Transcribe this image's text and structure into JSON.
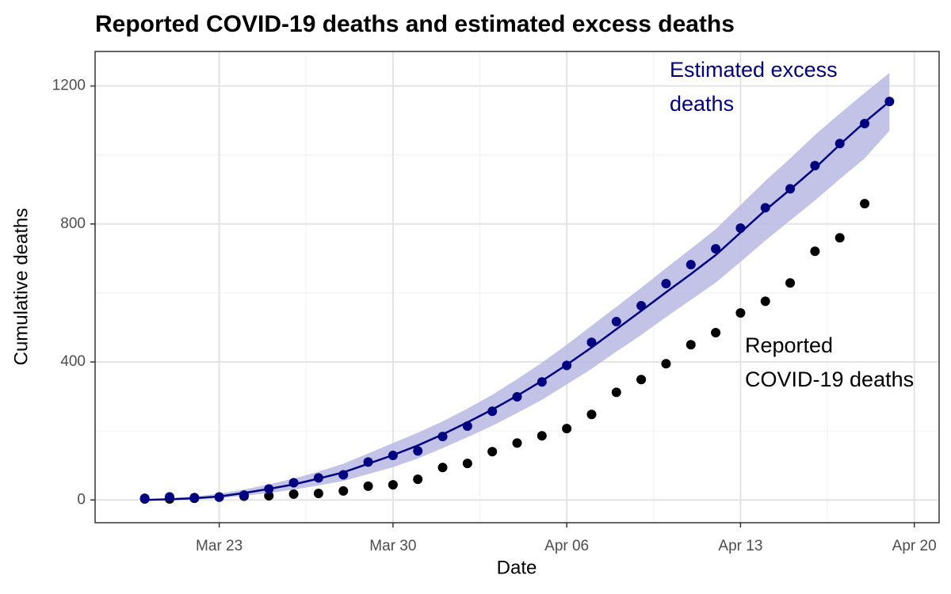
{
  "chart_data": {
    "type": "line",
    "title": "Reported COVID-19 deaths and estimated excess deaths",
    "x_label": "Date",
    "y_label": "Cumulative deaths",
    "x": [
      "Mar 20",
      "Mar 21",
      "Mar 22",
      "Mar 23",
      "Mar 24",
      "Mar 25",
      "Mar 26",
      "Mar 27",
      "Mar 28",
      "Mar 29",
      "Mar 30",
      "Mar 31",
      "Apr 01",
      "Apr 02",
      "Apr 03",
      "Apr 04",
      "Apr 05",
      "Apr 06",
      "Apr 07",
      "Apr 08",
      "Apr 09",
      "Apr 10",
      "Apr 11",
      "Apr 12",
      "Apr 13",
      "Apr 14",
      "Apr 15",
      "Apr 16",
      "Apr 17",
      "Apr 18",
      "Apr 19"
    ],
    "xlim": [
      "Mar 18",
      "Apr 21"
    ],
    "xticks": [
      "Mar 23",
      "Mar 30",
      "Apr 06",
      "Apr 13",
      "Apr 20"
    ],
    "ylim": [
      -66,
      1300
    ],
    "yticks": [
      0,
      400,
      800,
      1200
    ],
    "grid": true,
    "minor_grid": true,
    "series": [
      {
        "color": "#000080",
        "ribbon_color": "#b8b8e4",
        "label_lines": [
          "Estimated excess",
          "deaths"
        ],
        "values": [
          5,
          9,
          7,
          9,
          14,
          32,
          50,
          64,
          73,
          110,
          129,
          142,
          184,
          214,
          257,
          299,
          342,
          390,
          457,
          517,
          563,
          627,
          682,
          728,
          788,
          847,
          902,
          969,
          1033,
          1091,
          1155
        ],
        "fit": [
          0,
          2,
          5,
          10,
          20,
          32,
          45,
          62,
          80,
          105,
          130,
          158,
          190,
          225,
          262,
          302,
          345,
          392,
          442,
          495,
          548,
          602,
          655,
          710,
          775,
          840,
          900,
          962,
          1030,
          1095,
          1155
        ],
        "lower": [
          0,
          0,
          2,
          5,
          12,
          20,
          30,
          42,
          55,
          75,
          95,
          120,
          150,
          182,
          215,
          252,
          290,
          335,
          380,
          430,
          478,
          530,
          580,
          630,
          690,
          752,
          810,
          868,
          930,
          990,
          1070
        ],
        "upper": [
          2,
          5,
          10,
          18,
          30,
          45,
          62,
          82,
          105,
          135,
          165,
          195,
          228,
          265,
          305,
          350,
          398,
          450,
          505,
          560,
          615,
          672,
          728,
          785,
          855,
          925,
          990,
          1058,
          1120,
          1180,
          1238
        ]
      },
      {
        "color": "#000000",
        "label_lines": [
          "Reported",
          "COVID-19 deaths"
        ],
        "values": [
          3,
          3,
          5,
          8,
          11,
          12,
          17,
          19,
          26,
          40,
          44,
          60,
          94,
          106,
          140,
          165,
          186,
          207,
          248,
          312,
          349,
          395,
          450,
          485,
          542,
          576,
          629,
          721,
          760,
          859,
          null
        ]
      }
    ]
  }
}
